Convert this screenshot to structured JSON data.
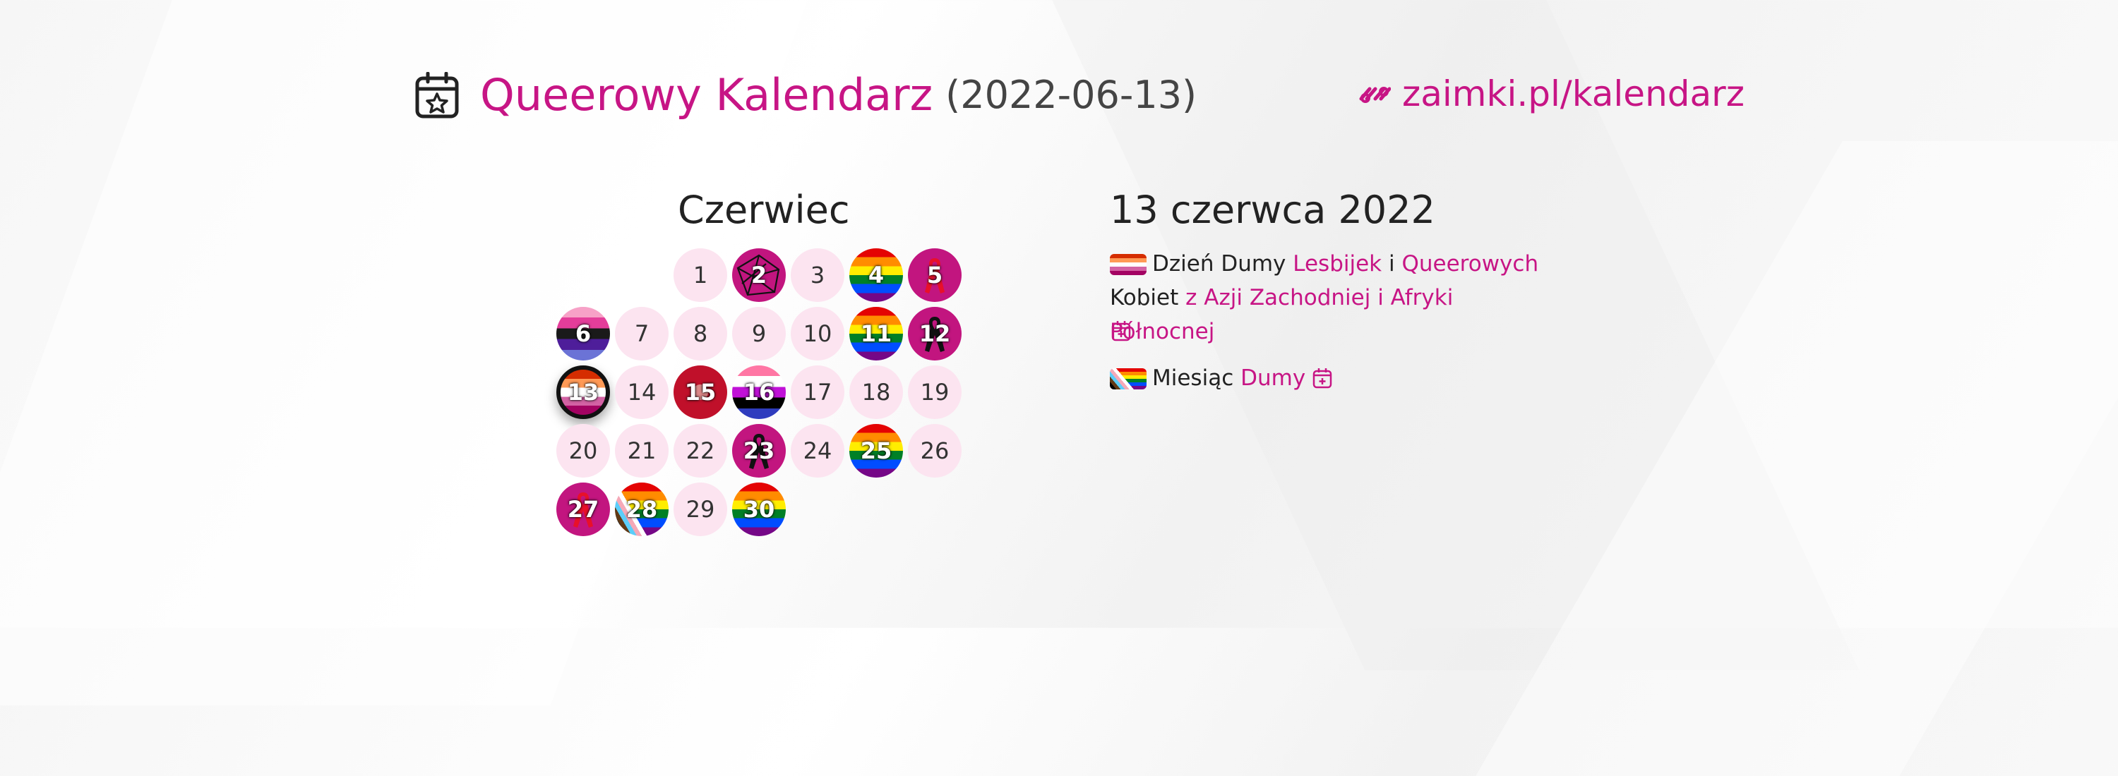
{
  "header": {
    "title": "Queerowy Kalendarz",
    "date": "(2022-06-13)",
    "site": "zaimki.pl/kalendarz"
  },
  "calendar": {
    "month": "Czerwiec",
    "days": [
      {
        "d": "1",
        "col": 2,
        "row": 0,
        "style": "plain"
      },
      {
        "d": "2",
        "col": 3,
        "row": 0,
        "style": "magenta-net"
      },
      {
        "d": "3",
        "col": 4,
        "row": 0,
        "style": "plain"
      },
      {
        "d": "4",
        "col": 5,
        "row": 0,
        "style": "rainbow"
      },
      {
        "d": "5",
        "col": 6,
        "row": 0,
        "style": "magenta-ribbon-red"
      },
      {
        "d": "6",
        "col": 0,
        "row": 1,
        "style": "flag6"
      },
      {
        "d": "7",
        "col": 1,
        "row": 1,
        "style": "plain"
      },
      {
        "d": "8",
        "col": 2,
        "row": 1,
        "style": "plain"
      },
      {
        "d": "9",
        "col": 3,
        "row": 1,
        "style": "plain"
      },
      {
        "d": "10",
        "col": 4,
        "row": 1,
        "style": "plain"
      },
      {
        "d": "11",
        "col": 5,
        "row": 1,
        "style": "rainbow"
      },
      {
        "d": "12",
        "col": 6,
        "row": 1,
        "style": "magenta-ribbon-black"
      },
      {
        "d": "13",
        "col": 0,
        "row": 2,
        "style": "lesbian-today"
      },
      {
        "d": "14",
        "col": 1,
        "row": 2,
        "style": "plain"
      },
      {
        "d": "15",
        "col": 2,
        "row": 2,
        "style": "flag15"
      },
      {
        "d": "16",
        "col": 3,
        "row": 2,
        "style": "genderfluid"
      },
      {
        "d": "17",
        "col": 4,
        "row": 2,
        "style": "plain"
      },
      {
        "d": "18",
        "col": 5,
        "row": 2,
        "style": "plain"
      },
      {
        "d": "19",
        "col": 6,
        "row": 2,
        "style": "plain"
      },
      {
        "d": "20",
        "col": 0,
        "row": 3,
        "style": "plain"
      },
      {
        "d": "21",
        "col": 1,
        "row": 3,
        "style": "plain"
      },
      {
        "d": "22",
        "col": 2,
        "row": 3,
        "style": "plain"
      },
      {
        "d": "23",
        "col": 3,
        "row": 3,
        "style": "magenta-ribbon-black"
      },
      {
        "d": "24",
        "col": 4,
        "row": 3,
        "style": "plain"
      },
      {
        "d": "25",
        "col": 5,
        "row": 3,
        "style": "rainbow"
      },
      {
        "d": "26",
        "col": 6,
        "row": 3,
        "style": "plain"
      },
      {
        "d": "27",
        "col": 0,
        "row": 4,
        "style": "magenta-ribbon-red"
      },
      {
        "d": "28",
        "col": 1,
        "row": 4,
        "style": "progress"
      },
      {
        "d": "29",
        "col": 2,
        "row": 4,
        "style": "plain"
      },
      {
        "d": "30",
        "col": 3,
        "row": 4,
        "style": "rainbow"
      }
    ]
  },
  "detail": {
    "title": "13 czerwca 2022",
    "event1": {
      "t1": "Dzień Dumy",
      "link1": "Lesbijek",
      "t2": "i",
      "link2": "Queerowych",
      "t3": "Kobiet",
      "link3": "z Azji Zachodniej i Afryki Północnej"
    },
    "event2": {
      "t1": "Miesiąc",
      "link1": "Dumy"
    }
  },
  "colors": {
    "accent": "#c71585",
    "day_bg": "#fce4f0"
  }
}
